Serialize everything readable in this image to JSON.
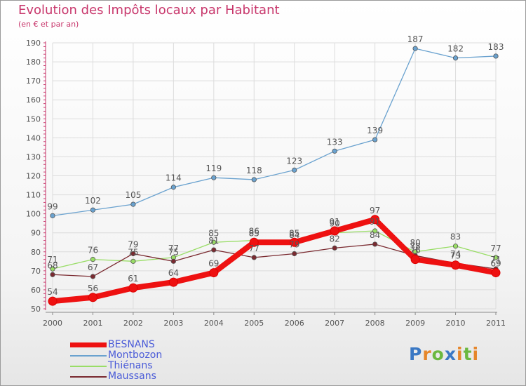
{
  "header": {
    "title": "Evolution des Impôts locaux par Habitant",
    "subtitle": "(en € et par an)"
  },
  "logo": {
    "letters": [
      "P",
      "r",
      "o",
      "x",
      "i",
      "t",
      "i"
    ],
    "colors": [
      "#3a78c4",
      "#e6862a",
      "#6bb840",
      "#3a78c4",
      "#e6862a",
      "#6bb840",
      "#e6862a"
    ]
  },
  "chart_data": {
    "type": "line",
    "title": "Evolution des Impôts locaux par Habitant",
    "subtitle": "(en € et par an)",
    "xlabel": "",
    "ylabel": "",
    "ylim": [
      50,
      190
    ],
    "yticks": [
      50,
      60,
      70,
      80,
      90,
      100,
      110,
      120,
      130,
      140,
      150,
      160,
      170,
      180,
      190
    ],
    "grid": true,
    "legend_position": "bottom-left",
    "categories": [
      "2000",
      "2001",
      "2002",
      "2003",
      "2004",
      "2005",
      "2006",
      "2007",
      "2008",
      "2009",
      "2010",
      "2011"
    ],
    "series": [
      {
        "name": "BESNANS",
        "color": "#ee1111",
        "values": [
          54,
          56,
          61,
          64,
          69,
          85,
          85,
          91,
          97,
          76,
          73,
          69
        ]
      },
      {
        "name": "Montbozon",
        "color": "#6aa2cf",
        "values": [
          99,
          102,
          105,
          114,
          119,
          118,
          123,
          133,
          139,
          187,
          182,
          183
        ]
      },
      {
        "name": "Thiénans",
        "color": "#99dd66",
        "values": [
          71,
          76,
          75,
          77,
          85,
          86,
          84,
          90,
          91,
          80,
          83,
          77
        ]
      },
      {
        "name": "Maussans",
        "color": "#7a2a30",
        "values": [
          68,
          67,
          79,
          75,
          81,
          77,
          79,
          82,
          84,
          78,
          74,
          71
        ]
      }
    ]
  }
}
